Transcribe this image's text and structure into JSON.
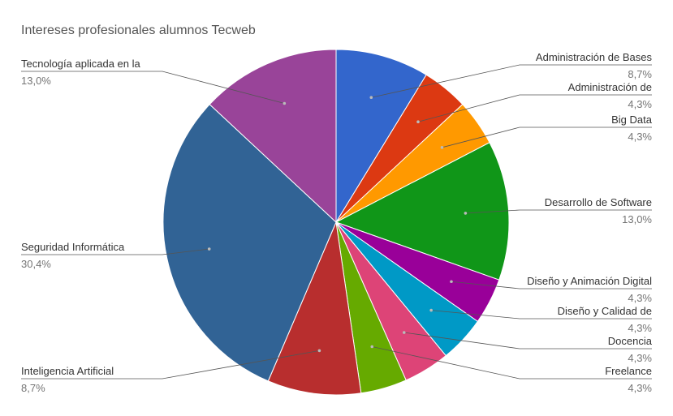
{
  "chart_data": {
    "type": "pie",
    "title": "Intereses profesionales alumnos Tecweb",
    "slices": [
      {
        "label": "Administración de Bases",
        "value": 8.7,
        "value_label": "8,7%",
        "color": "#3366CC"
      },
      {
        "label": "Administración de",
        "value": 4.3,
        "value_label": "4,3%",
        "color": "#DC3912"
      },
      {
        "label": "Big Data",
        "value": 4.3,
        "value_label": "4,3%",
        "color": "#FF9900"
      },
      {
        "label": "Desarrollo de Software",
        "value": 13.0,
        "value_label": "13,0%",
        "color": "#109618"
      },
      {
        "label": "Diseño y Animación Digital",
        "value": 4.3,
        "value_label": "4,3%",
        "color": "#990099"
      },
      {
        "label": "Diseño y Calidad de",
        "value": 4.3,
        "value_label": "4,3%",
        "color": "#0099C6"
      },
      {
        "label": "Docencia",
        "value": 4.3,
        "value_label": "4,3%",
        "color": "#DD4477"
      },
      {
        "label": "Freelance",
        "value": 4.3,
        "value_label": "4,3%",
        "color": "#66AA00"
      },
      {
        "label": "Inteligencia Artificial",
        "value": 8.7,
        "value_label": "8,7%",
        "color": "#B82E2E"
      },
      {
        "label": "Seguridad Informática",
        "value": 30.4,
        "value_label": "30,4%",
        "color": "#316395"
      },
      {
        "label": "Tecnología aplicada en la",
        "value": 13.0,
        "value_label": "13,0%",
        "color": "#994499"
      }
    ]
  }
}
